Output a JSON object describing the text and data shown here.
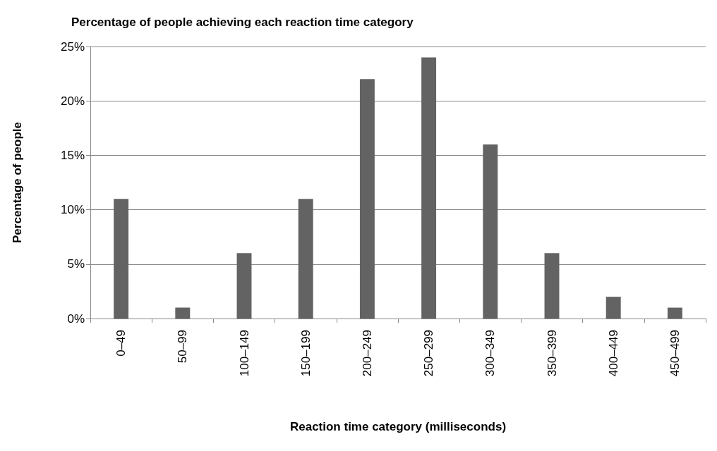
{
  "chart_data": {
    "type": "bar",
    "title": "Percentage of people achieving each reaction time category",
    "xlabel": "Reaction time category (milliseconds)",
    "ylabel": "Percentage of people",
    "categories": [
      "0–49",
      "50–99",
      "100–149",
      "150–199",
      "200–249",
      "250–299",
      "300–349",
      "350–399",
      "400–449",
      "450–499"
    ],
    "values": [
      11,
      1,
      6,
      11,
      22,
      24,
      16,
      6,
      2,
      1
    ],
    "color": "#636363",
    "ylim": [
      0,
      25
    ],
    "yticks": [
      {
        "value": 0,
        "label": "0%"
      },
      {
        "value": 5,
        "label": "5%"
      },
      {
        "value": 10,
        "label": "10%"
      },
      {
        "value": 15,
        "label": "15%"
      },
      {
        "value": 20,
        "label": "20%"
      },
      {
        "value": 25,
        "label": "25%"
      }
    ],
    "grid": "y"
  }
}
